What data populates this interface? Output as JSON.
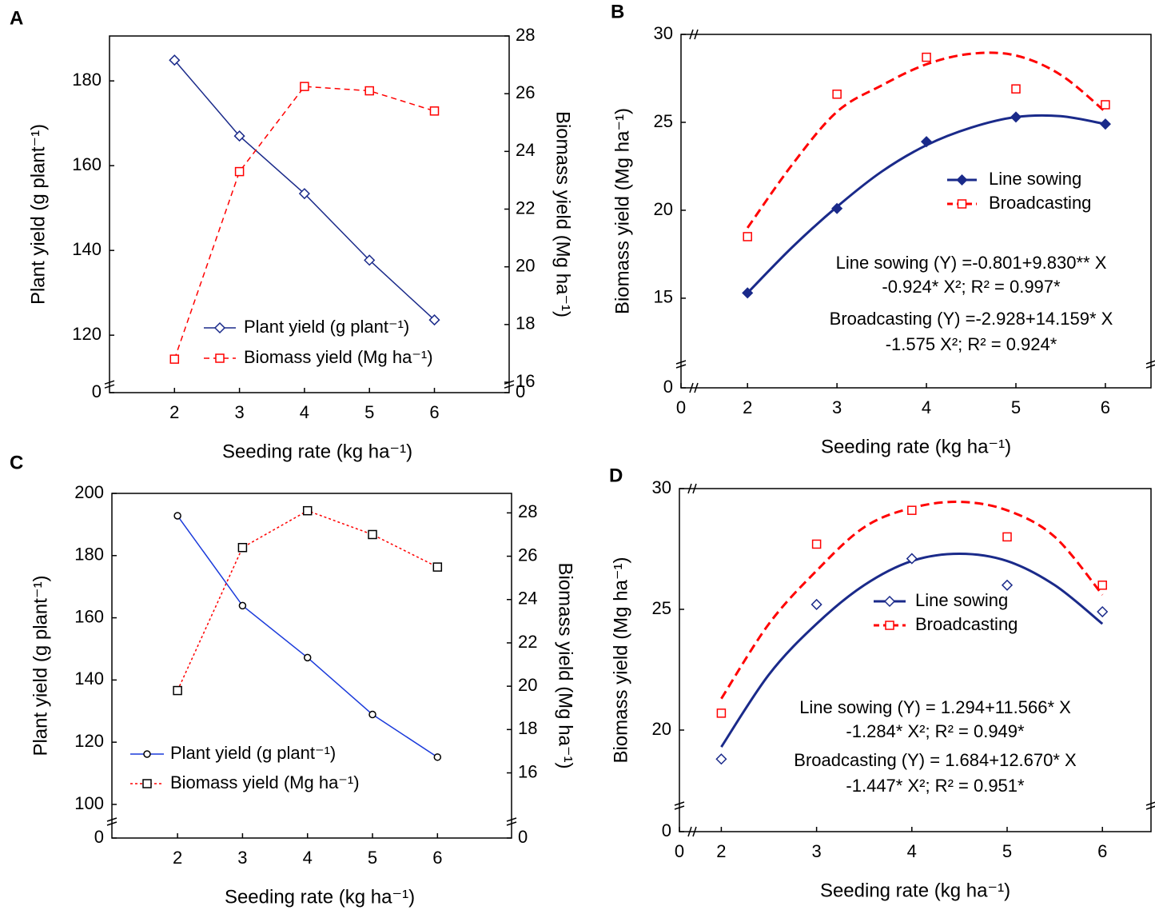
{
  "chart_data": [
    {
      "type": "line",
      "label": "A",
      "xlabel": "Seeding rate (kg ha⁻¹)",
      "ylabel": "Plant yield (g plant⁻¹)",
      "y2label": "Biomass yield (Mg ha⁻¹)",
      "x": [
        2,
        3,
        4,
        5,
        6
      ],
      "xlim": [
        1,
        7.15
      ],
      "xticks": [
        2,
        3,
        4,
        5,
        6
      ],
      "ylim": [
        0,
        190.6
      ],
      "ybreak": 108.9,
      "yticks": [
        0,
        120,
        140,
        160,
        180
      ],
      "y2lim": [
        0,
        28
      ],
      "y2break": 16,
      "y2ticks": [
        0,
        16,
        18,
        20,
        22,
        24,
        26,
        28
      ],
      "series": [
        {
          "name": "Plant yield (g plant⁻¹)",
          "color": "#1a2a8a",
          "marker": "diamond",
          "style": "solid",
          "values": [
            184.9,
            167,
            153.4,
            137.7,
            123.6
          ]
        },
        {
          "name": "Biomass yield (Mg ha⁻¹)",
          "color": "#ff0000",
          "marker": "square",
          "style": "dashed",
          "axis": "y2",
          "values": [
            16.8,
            23.3,
            26.25,
            26.1,
            25.4
          ]
        }
      ]
    },
    {
      "type": "scatter",
      "label": "B",
      "xlabel": "Seeding rate (kg ha⁻¹)",
      "ylabel": "Biomass yield (Mg ha⁻¹)",
      "x": [
        2,
        3,
        4,
        5,
        6
      ],
      "xlim": [
        0,
        6.51
      ],
      "xbreak": 1.48,
      "xticks": [
        0,
        2,
        3,
        4,
        5,
        6
      ],
      "ylim": [
        0,
        30
      ],
      "ybreak": 11.95,
      "yticks": [
        0,
        15,
        20,
        25,
        30
      ],
      "series": [
        {
          "name": "Line sowing",
          "color": "#1a2a8a",
          "marker": "diamond-filled",
          "style": "solid",
          "values": [
            15.3,
            20.1,
            23.9,
            25.3,
            24.9
          ],
          "fit_x": [
            2,
            2.5,
            3,
            3.5,
            4,
            4.5,
            5,
            5.5,
            6
          ],
          "fit": [
            15.3,
            17.9,
            20.2,
            22.2,
            23.7,
            24.7,
            25.3,
            25.35,
            24.9
          ]
        },
        {
          "name": "Broadcasting",
          "color": "#ff0000",
          "marker": "square",
          "style": "dashed",
          "values": [
            18.5,
            26.6,
            28.7,
            26.9,
            26.0
          ],
          "fit_x": [
            2,
            2.5,
            3,
            3.5,
            4,
            4.5,
            5,
            5.5,
            6
          ],
          "fit": [
            19.0,
            22.6,
            25.6,
            27.1,
            28.3,
            28.9,
            28.8,
            27.7,
            25.6
          ]
        }
      ],
      "annotations": [
        "Line sowing (Y) =-0.801+9.830** X",
        "-0.924* X²; R² = 0.997*",
        "Broadcasting (Y) =-2.928+14.159* X",
        "-1.575 X²; R² = 0.924*"
      ]
    },
    {
      "type": "line",
      "label": "C",
      "xlabel": "Seeding rate (kg ha⁻¹)",
      "ylabel": "Plant yield (g plant⁻¹)",
      "y2label": "Biomass yield (Mg ha⁻¹)",
      "x": [
        2,
        3,
        4,
        5,
        6
      ],
      "xlim": [
        0.99,
        7.14
      ],
      "xticks": [
        2,
        3,
        4,
        5,
        6
      ],
      "ylim": [
        0,
        200
      ],
      "ybreak": 96.9,
      "yticks": [
        0,
        100,
        120,
        140,
        160,
        180,
        200
      ],
      "y2lim": [
        0,
        28.9
      ],
      "y2break": 14.1,
      "y2ticks": [
        0,
        16,
        18,
        20,
        22,
        24,
        26,
        28
      ],
      "series": [
        {
          "name": "Plant yield (g plant⁻¹)",
          "color": "#1a3adb",
          "marker": "circle",
          "style": "solid",
          "values": [
            192.8,
            163.9,
            147.2,
            128.9,
            115.2
          ]
        },
        {
          "name": "Biomass yield (Mg ha⁻¹)",
          "color": "#ff0000",
          "marker": "square-black",
          "style": "dotted",
          "axis": "y2",
          "values": [
            19.8,
            26.4,
            28.1,
            27.0,
            25.5
          ]
        }
      ]
    },
    {
      "type": "scatter",
      "label": "D",
      "xlabel": "Seeding rate (kg ha⁻¹)",
      "ylabel": "Biomass yield (Mg ha⁻¹)",
      "x": [
        2,
        3,
        4,
        5,
        6
      ],
      "xlim": [
        0,
        6.51
      ],
      "xbreak": 1.77,
      "xticks": [
        0,
        2,
        3,
        4,
        5,
        6
      ],
      "ylim": [
        0,
        30
      ],
      "ybreak": 17.45,
      "yticks": [
        0,
        20,
        25,
        30
      ],
      "series": [
        {
          "name": "Line sowing",
          "color": "#1a2a8a",
          "marker": "diamond",
          "style": "solid",
          "values": [
            18.8,
            25.2,
            27.1,
            26.0,
            24.9
          ],
          "fit_x": [
            2,
            2.5,
            3,
            3.5,
            4,
            4.5,
            5,
            5.5,
            6
          ],
          "fit": [
            19.3,
            22.3,
            24.4,
            26.0,
            27.0,
            27.3,
            27.0,
            26.0,
            24.4
          ]
        },
        {
          "name": "Broadcasting",
          "color": "#ff0000",
          "marker": "square",
          "style": "dashed",
          "values": [
            20.7,
            27.7,
            29.1,
            28.0,
            26.0
          ],
          "fit_x": [
            2,
            2.5,
            3,
            3.5,
            4,
            4.5,
            5,
            5.5,
            6
          ],
          "fit": [
            21.3,
            24.4,
            26.6,
            28.4,
            29.2,
            29.45,
            29.1,
            28.0,
            25.6
          ]
        }
      ],
      "annotations": [
        "Line sowing (Y) = 1.294+11.566* X",
        "-1.284* X²; R² = 0.949*",
        "Broadcasting (Y) = 1.684+12.670* X",
        "-1.447* X²; R² = 0.951*"
      ]
    }
  ]
}
